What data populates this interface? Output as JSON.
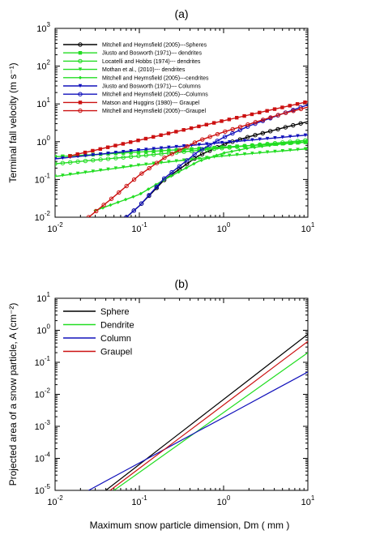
{
  "chart_data": [
    {
      "type": "line",
      "panel_label": "(a)",
      "xscale": "log",
      "yscale": "log",
      "xlim": [
        0.01,
        10
      ],
      "ylim": [
        0.01,
        1000
      ],
      "ylabel": "Terminal fall velocity  (m s⁻¹)",
      "xlabel": "",
      "x_ticks": [
        0.01,
        0.1,
        1,
        10
      ],
      "y_ticks": [
        0.01,
        0.1,
        1,
        10,
        100,
        1000
      ],
      "legend_position": "upper-left",
      "series": [
        {
          "name": "Mitchell and Heymsfield (2005)---Spheres",
          "color": "#000000",
          "marker": "circle",
          "x": [
            0.07,
            0.1,
            0.2,
            0.5,
            1,
            2,
            5,
            10
          ],
          "y": [
            0.01,
            0.02,
            0.1,
            0.42,
            0.85,
            1.35,
            2.3,
            3.4
          ]
        },
        {
          "name": "Jiusto and Bosworth (1971)--- dendrites",
          "color": "#22dd22",
          "marker": "square",
          "x": [
            0.01,
            0.1,
            1,
            10
          ],
          "y": [
            0.4,
            0.53,
            0.72,
            0.97
          ]
        },
        {
          "name": "Locatelli and Hobbs (1974)--- dendrites",
          "color": "#22dd22",
          "marker": "circle",
          "x": [
            0.01,
            0.1,
            1,
            10
          ],
          "y": [
            0.26,
            0.42,
            0.68,
            1.1
          ]
        },
        {
          "name": "Mothan et al., (2010)--- dendrites",
          "color": "#22dd22",
          "marker": "triangle",
          "x": [
            0.01,
            0.1,
            1,
            10
          ],
          "y": [
            0.12,
            0.24,
            0.42,
            0.65
          ]
        },
        {
          "name": "Mitchell and Heymsfield (2005)---cendrites",
          "color": "#22dd22",
          "marker": "diamond",
          "x": [
            0.03,
            0.1,
            0.2,
            0.5,
            1,
            2,
            5,
            10
          ],
          "y": [
            0.015,
            0.04,
            0.1,
            0.3,
            0.5,
            0.68,
            0.88,
            1.0
          ]
        },
        {
          "name": "Jiusto and Bosworth (1971)--- Columns",
          "color": "#1111bb",
          "marker": "triangle",
          "x": [
            0.01,
            0.1,
            1,
            10
          ],
          "y": [
            0.35,
            0.6,
            0.95,
            1.5
          ]
        },
        {
          "name": "Mitchell and Heymsfield (2005)---Columns",
          "color": "#1111bb",
          "marker": "circle",
          "x": [
            0.07,
            0.1,
            0.2,
            0.5,
            1,
            2,
            5,
            10
          ],
          "y": [
            0.01,
            0.02,
            0.11,
            0.55,
            1.3,
            2.6,
            5.5,
            9.5
          ]
        },
        {
          "name": "Matson and Huggins (1980)--- Graupel",
          "color": "#cc1111",
          "marker": "square",
          "x": [
            0.015,
            0.1,
            1,
            10
          ],
          "y": [
            0.42,
            1.1,
            3.6,
            11.5
          ]
        },
        {
          "name": "Mitchell and Heymsfield (2005)---Graupel",
          "color": "#cc1111",
          "marker": "circle",
          "x": [
            0.025,
            0.05,
            0.1,
            0.2,
            0.5,
            1,
            2,
            5,
            10
          ],
          "y": [
            0.01,
            0.035,
            0.13,
            0.38,
            1.05,
            1.8,
            2.9,
            5.5,
            8.2
          ]
        }
      ]
    },
    {
      "type": "line",
      "panel_label": "(b)",
      "xscale": "log",
      "yscale": "log",
      "xlim": [
        0.01,
        10
      ],
      "ylim": [
        1e-05,
        10
      ],
      "ylabel": "Projected area of a snow particle, A (cm⁻²)",
      "xlabel": "Maximum snow particle dimension, Dm ( mm )",
      "x_ticks": [
        0.01,
        0.1,
        1,
        10
      ],
      "y_ticks": [
        1e-05,
        0.0001,
        0.001,
        0.01,
        0.1,
        1,
        10
      ],
      "legend_position": "upper-left",
      "series": [
        {
          "name": "Sphere",
          "color": "#000000",
          "x": [
            0.04,
            10
          ],
          "y": [
            1e-05,
            0.75
          ]
        },
        {
          "name": "Dendrite",
          "color": "#22dd22",
          "x": [
            0.05,
            10
          ],
          "y": [
            1e-05,
            0.2
          ]
        },
        {
          "name": "Column",
          "color": "#1111bb",
          "x": [
            0.025,
            10
          ],
          "y": [
            1e-05,
            0.05
          ]
        },
        {
          "name": "Graupel",
          "color": "#cc1111",
          "x": [
            0.045,
            10
          ],
          "y": [
            1e-05,
            0.45
          ]
        }
      ]
    }
  ]
}
